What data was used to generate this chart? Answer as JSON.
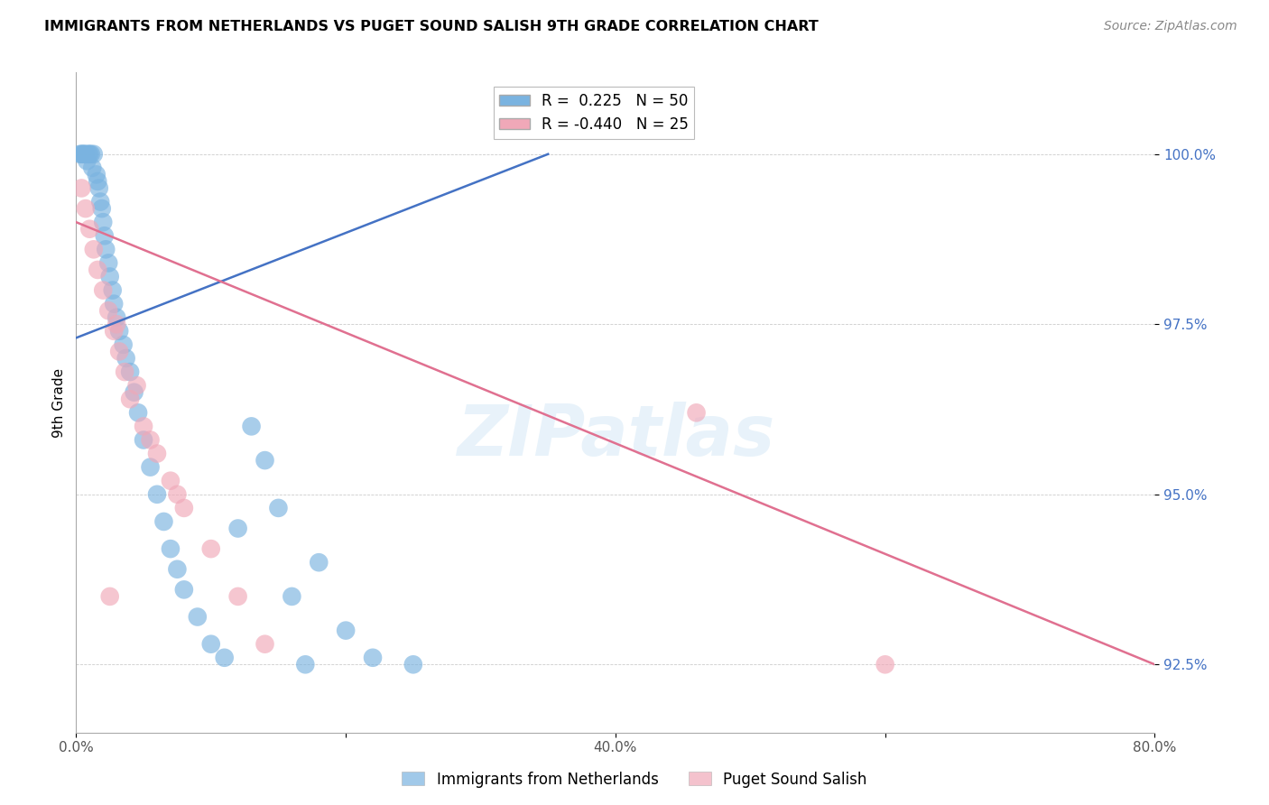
{
  "title": "IMMIGRANTS FROM NETHERLANDS VS PUGET SOUND SALISH 9TH GRADE CORRELATION CHART",
  "source": "Source: ZipAtlas.com",
  "ylabel": "9th Grade",
  "xlim": [
    0.0,
    80.0
  ],
  "ylim": [
    91.5,
    101.2
  ],
  "yticks": [
    92.5,
    95.0,
    97.5,
    100.0
  ],
  "xticks": [
    0.0,
    20.0,
    40.0,
    60.0,
    80.0
  ],
  "xtick_labels": [
    "0.0%",
    "",
    "40.0%",
    "",
    "80.0%"
  ],
  "ytick_labels": [
    "92.5%",
    "95.0%",
    "97.5%",
    "100.0%"
  ],
  "blue_R": 0.225,
  "blue_N": 50,
  "pink_R": -0.44,
  "pink_N": 25,
  "blue_color": "#7ab3e0",
  "pink_color": "#f0a8b8",
  "blue_line_color": "#4472c4",
  "pink_line_color": "#e07090",
  "watermark": "ZIPatlas",
  "blue_scatter_x": [
    0.3,
    0.5,
    0.7,
    0.8,
    0.9,
    1.0,
    1.1,
    1.2,
    1.3,
    1.5,
    1.6,
    1.7,
    1.8,
    1.9,
    2.0,
    2.1,
    2.2,
    2.4,
    2.5,
    2.7,
    2.8,
    3.0,
    3.2,
    3.5,
    3.7,
    4.0,
    4.3,
    4.6,
    5.0,
    5.5,
    6.0,
    6.5,
    7.0,
    7.5,
    8.0,
    9.0,
    10.0,
    11.0,
    12.0,
    13.0,
    14.0,
    15.0,
    16.0,
    17.0,
    18.0,
    20.0,
    22.0,
    25.0,
    0.4,
    0.6
  ],
  "blue_scatter_y": [
    100.0,
    100.0,
    100.0,
    99.9,
    100.0,
    100.0,
    100.0,
    99.8,
    100.0,
    99.7,
    99.6,
    99.5,
    99.3,
    99.2,
    99.0,
    98.8,
    98.6,
    98.4,
    98.2,
    98.0,
    97.8,
    97.6,
    97.4,
    97.2,
    97.0,
    96.8,
    96.5,
    96.2,
    95.8,
    95.4,
    95.0,
    94.6,
    94.2,
    93.9,
    93.6,
    93.2,
    92.8,
    92.6,
    94.5,
    96.0,
    95.5,
    94.8,
    93.5,
    92.5,
    94.0,
    93.0,
    92.6,
    92.5,
    100.0,
    100.0
  ],
  "pink_scatter_x": [
    0.4,
    0.7,
    1.0,
    1.3,
    1.6,
    2.0,
    2.4,
    2.8,
    3.2,
    3.6,
    4.0,
    5.0,
    6.0,
    7.0,
    8.0,
    10.0,
    12.0,
    14.0,
    3.0,
    4.5,
    5.5,
    7.5,
    46.0,
    2.5,
    60.0
  ],
  "pink_scatter_y": [
    99.5,
    99.2,
    98.9,
    98.6,
    98.3,
    98.0,
    97.7,
    97.4,
    97.1,
    96.8,
    96.4,
    96.0,
    95.6,
    95.2,
    94.8,
    94.2,
    93.5,
    92.8,
    97.5,
    96.6,
    95.8,
    95.0,
    96.2,
    93.5,
    92.5
  ],
  "blue_line_x0": 0.0,
  "blue_line_y0": 97.3,
  "blue_line_x1": 35.0,
  "blue_line_y1": 100.0,
  "pink_line_x0": 0.0,
  "pink_line_y0": 99.0,
  "pink_line_x1": 80.0,
  "pink_line_y1": 92.5
}
